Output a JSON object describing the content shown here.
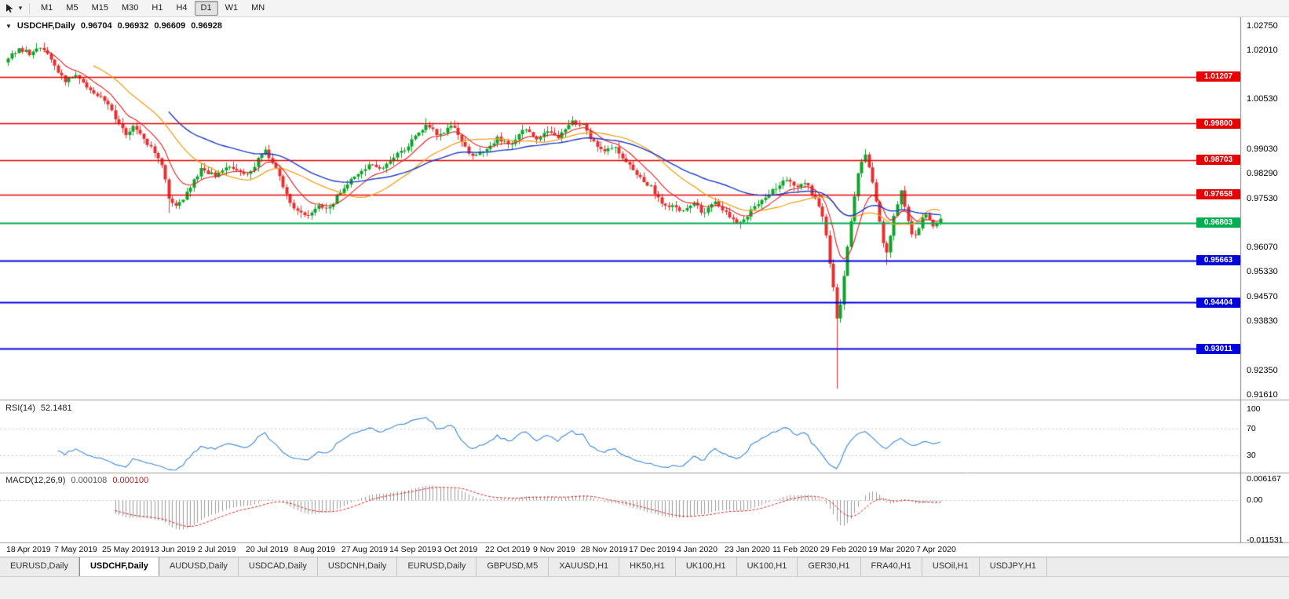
{
  "colors": {
    "candle_up": "#0fa32b",
    "candle_down": "#e53030",
    "ma_fast": "#e02020",
    "ma_mid": "#f0a21c",
    "ma_slow": "#2038c8",
    "resistance": "#e60000",
    "support": "#0000dd",
    "current": "#00b050",
    "rsi_line": "#4a90d9",
    "macd_hist": "#9a9a9a",
    "macd_signal": "#e02020"
  },
  "toolbar": {
    "timeframes": [
      "M1",
      "M5",
      "M15",
      "M30",
      "H1",
      "H4",
      "D1",
      "W1",
      "MN"
    ],
    "active_timeframe": "D1"
  },
  "chart": {
    "symbol_label": "USDCHF,Daily",
    "ohlc": {
      "open": "0.96704",
      "high": "0.96932",
      "low": "0.96609",
      "close": "0.96928"
    },
    "y_axis_ticks": [
      "1.02750",
      "1.02010",
      "1.00530",
      "0.99030",
      "0.98290",
      "0.97530",
      "0.96070",
      "0.95330",
      "0.94570",
      "0.93830",
      "0.92350",
      "0.91610"
    ],
    "levels": [
      {
        "value": "1.01207",
        "kind": "resistance"
      },
      {
        "value": "0.99800",
        "kind": "resistance"
      },
      {
        "value": "0.98703",
        "kind": "resistance"
      },
      {
        "value": "0.97658",
        "kind": "resistance"
      },
      {
        "value": "0.96803",
        "kind": "current"
      },
      {
        "value": "0.95663",
        "kind": "support"
      },
      {
        "value": "0.94404",
        "kind": "support"
      },
      {
        "value": "0.93011",
        "kind": "support"
      }
    ],
    "x_axis_dates": [
      "18 Apr 2019",
      "7 May 2019",
      "25 May 2019",
      "13 Jun 2019",
      "2 Jul 2019",
      "20 Jul 2019",
      "8 Aug 2019",
      "27 Aug 2019",
      "14 Sep 2019",
      "3 Oct 2019",
      "22 Oct 2019",
      "9 Nov 2019",
      "28 Nov 2019",
      "17 Dec 2019",
      "4 Jan 2020",
      "23 Jan 2020",
      "11 Feb 2020",
      "29 Feb 2020",
      "19 Mar 2020",
      "7 Apr 2020"
    ]
  },
  "rsi": {
    "label": "RSI(14)",
    "value": "52.1481",
    "period": 14,
    "axis_ticks": [
      "100",
      "70",
      "30"
    ],
    "level_lines": [
      70,
      30
    ]
  },
  "macd": {
    "label": "MACD(12,26,9)",
    "main_value": "0.000108",
    "signal_value": "0.000100",
    "axis_ticks": [
      "0.006167",
      "0.00",
      "-0.011531"
    ],
    "params": {
      "fast": 12,
      "slow": 26,
      "signal": 9
    }
  },
  "chart_data": {
    "type": "candlestick",
    "title": "USDCHF Daily with RSI(14) and MACD(12,26,9)",
    "candle_count": 262,
    "price_min": 0.9152,
    "price_max": 1.0293,
    "close_anchors": [
      [
        0,
        1.0175
      ],
      [
        3,
        1.0208
      ],
      [
        6,
        1.019
      ],
      [
        8,
        1.0212
      ],
      [
        11,
        1.0196
      ],
      [
        13,
        1.015
      ],
      [
        16,
        1.011
      ],
      [
        19,
        1.0132
      ],
      [
        22,
        1.0088
      ],
      [
        27,
        1.0052
      ],
      [
        30,
        0.9998
      ],
      [
        33,
        0.995
      ],
      [
        35,
        0.9968
      ],
      [
        38,
        0.9932
      ],
      [
        40,
        0.9905
      ],
      [
        43,
        0.9858
      ],
      [
        45,
        0.9755
      ],
      [
        47,
        0.9728
      ],
      [
        50,
        0.9768
      ],
      [
        54,
        0.9845
      ],
      [
        58,
        0.982
      ],
      [
        61,
        0.9852
      ],
      [
        64,
        0.9834
      ],
      [
        67,
        0.9822
      ],
      [
        70,
        0.9872
      ],
      [
        72,
        0.9896
      ],
      [
        75,
        0.9852
      ],
      [
        77,
        0.9788
      ],
      [
        79,
        0.9738
      ],
      [
        81,
        0.9713
      ],
      [
        84,
        0.97
      ],
      [
        87,
        0.9736
      ],
      [
        90,
        0.9722
      ],
      [
        92,
        0.9758
      ],
      [
        94,
        0.9788
      ],
      [
        98,
        0.983
      ],
      [
        101,
        0.9856
      ],
      [
        104,
        0.9842
      ],
      [
        108,
        0.9882
      ],
      [
        111,
        0.9902
      ],
      [
        114,
        0.9938
      ],
      [
        117,
        0.9976
      ],
      [
        119,
        0.9958
      ],
      [
        121,
        0.9944
      ],
      [
        124,
        0.9976
      ],
      [
        127,
        0.993
      ],
      [
        130,
        0.9878
      ],
      [
        134,
        0.99
      ],
      [
        137,
        0.9936
      ],
      [
        141,
        0.992
      ],
      [
        144,
        0.9962
      ],
      [
        148,
        0.9936
      ],
      [
        151,
        0.9962
      ],
      [
        154,
        0.994
      ],
      [
        158,
        0.9986
      ],
      [
        161,
        0.9972
      ],
      [
        164,
        0.992
      ],
      [
        167,
        0.9896
      ],
      [
        170,
        0.9906
      ],
      [
        174,
        0.9855
      ],
      [
        177,
        0.9812
      ],
      [
        180,
        0.9788
      ],
      [
        183,
        0.9742
      ],
      [
        189,
        0.9714
      ],
      [
        192,
        0.9736
      ],
      [
        195,
        0.9708
      ],
      [
        198,
        0.9744
      ],
      [
        202,
        0.9702
      ],
      [
        205,
        0.9678
      ],
      [
        208,
        0.9716
      ],
      [
        211,
        0.9748
      ],
      [
        215,
        0.9788
      ],
      [
        218,
        0.9816
      ],
      [
        221,
        0.979
      ],
      [
        223,
        0.9806
      ],
      [
        226,
        0.9752
      ],
      [
        228,
        0.97
      ],
      [
        229,
        0.964
      ],
      [
        230,
        0.956
      ],
      [
        231,
        0.948
      ],
      [
        232,
        0.939
      ],
      [
        233,
        0.944
      ],
      [
        234,
        0.952
      ],
      [
        235,
        0.961
      ],
      [
        236,
        0.968
      ],
      [
        237,
        0.976
      ],
      [
        238,
        0.983
      ],
      [
        239,
        0.987
      ],
      [
        240,
        0.9885
      ],
      [
        241,
        0.9845
      ],
      [
        243,
        0.975
      ],
      [
        244,
        0.968
      ],
      [
        245,
        0.962
      ],
      [
        246,
        0.9585
      ],
      [
        247,
        0.964
      ],
      [
        248,
        0.97
      ],
      [
        249,
        0.9742
      ],
      [
        250,
        0.9775
      ],
      [
        251,
        0.9725
      ],
      [
        252,
        0.969
      ],
      [
        253,
        0.9652
      ],
      [
        254,
        0.9645
      ],
      [
        255,
        0.9668
      ],
      [
        256,
        0.969
      ],
      [
        257,
        0.97
      ],
      [
        258,
        0.9688
      ],
      [
        259,
        0.9672
      ],
      [
        260,
        0.9685
      ],
      [
        261,
        0.9693
      ]
    ],
    "wick_low_overrides": [
      [
        45,
        0.971
      ],
      [
        84,
        0.9692
      ],
      [
        205,
        0.9662
      ],
      [
        232,
        0.918
      ],
      [
        246,
        0.9553
      ]
    ],
    "wick_high_overrides": [
      [
        8,
        1.0222
      ],
      [
        117,
        0.9996
      ],
      [
        158,
        1.0002
      ],
      [
        240,
        0.9903
      ]
    ],
    "ma_periods": {
      "fast": 10,
      "mid": 24,
      "slow": 45
    }
  },
  "tabs": {
    "items": [
      "EURUSD,Daily",
      "USDCHF,Daily",
      "AUDUSD,Daily",
      "USDCAD,Daily",
      "USDCNH,Daily",
      "EURUSD,Daily",
      "GBPUSD,M5",
      "XAUUSD,H1",
      "HK50,H1",
      "UK100,H1",
      "UK100,H1",
      "GER30,H1",
      "FRA40,H1",
      "USOil,H1",
      "USDJPY,H1"
    ],
    "active_index": 1
  }
}
